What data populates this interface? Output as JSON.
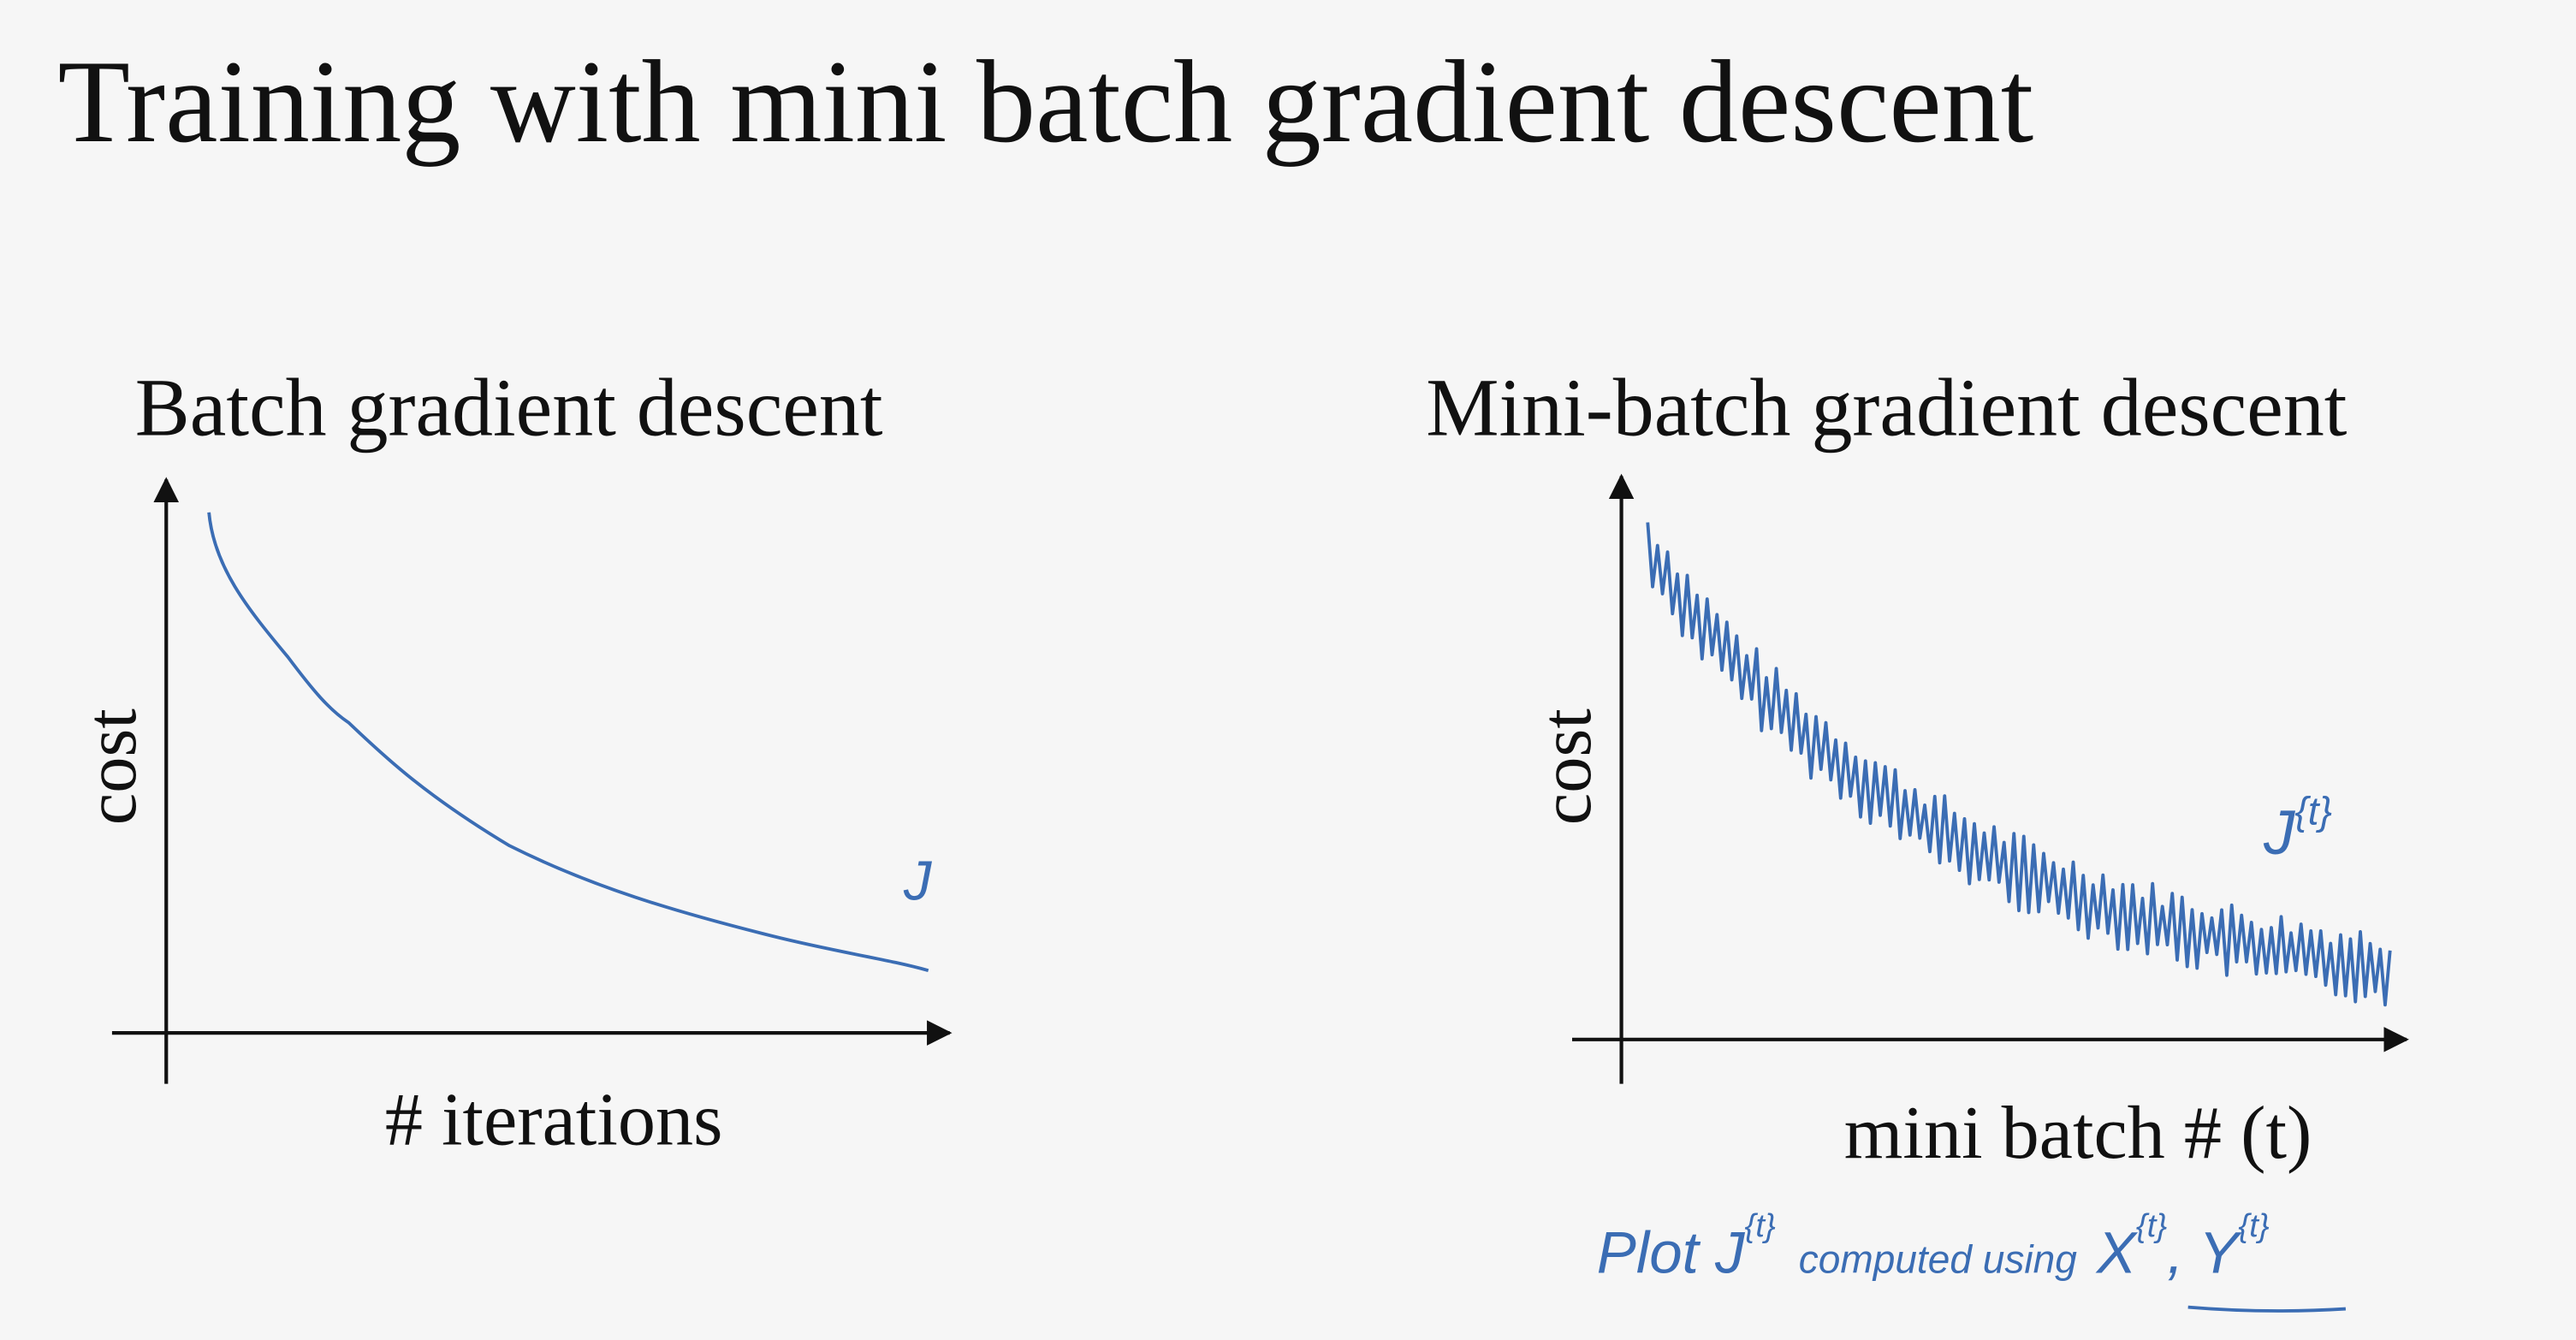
{
  "title": "Training with mini batch gradient descent",
  "left_panel": {
    "title": "Batch gradient descent",
    "y_label": "cost",
    "x_label": "# iterations",
    "annotation": "J"
  },
  "right_panel": {
    "title": "Mini-batch gradient descent",
    "y_label": "cost",
    "x_label": "mini batch # (t)",
    "annotation": {
      "base": "J",
      "sup": "{t}"
    }
  },
  "note": [
    "Plot J",
    "{t}",
    "computed using",
    "X",
    "{t}",
    ", Y",
    "{t}"
  ]
}
